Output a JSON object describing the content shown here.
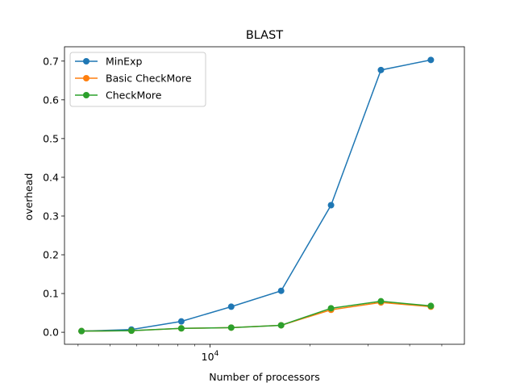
{
  "chart_data": {
    "type": "line",
    "title": "BLAST",
    "xlabel": "Number of processors",
    "ylabel": "overhead",
    "xscale": "log",
    "xlim": [
      3640,
      58500
    ],
    "ylim": [
      -0.031,
      0.737
    ],
    "grid": false,
    "legend_placement": "top-left",
    "x": [
      4096,
      5793,
      8192,
      11585,
      16384,
      23170,
      32768,
      46341
    ],
    "xtick_label": {
      "base": "10",
      "exponent": "4"
    },
    "yticks": [
      "0.0",
      "0.1",
      "0.2",
      "0.3",
      "0.4",
      "0.5",
      "0.6",
      "0.7"
    ],
    "series": [
      {
        "name": "MinExp",
        "color": "#1f77b4",
        "values": [
          0.003,
          0.007,
          0.028,
          0.066,
          0.107,
          0.328,
          0.677,
          0.703
        ]
      },
      {
        "name": "Basic CheckMore",
        "color": "#ff7f0e",
        "values": [
          0.003,
          0.004,
          0.01,
          0.012,
          0.018,
          0.058,
          0.077,
          0.066
        ]
      },
      {
        "name": "CheckMore",
        "color": "#2ca02c",
        "values": [
          0.003,
          0.004,
          0.01,
          0.012,
          0.018,
          0.062,
          0.08,
          0.068
        ]
      }
    ]
  }
}
